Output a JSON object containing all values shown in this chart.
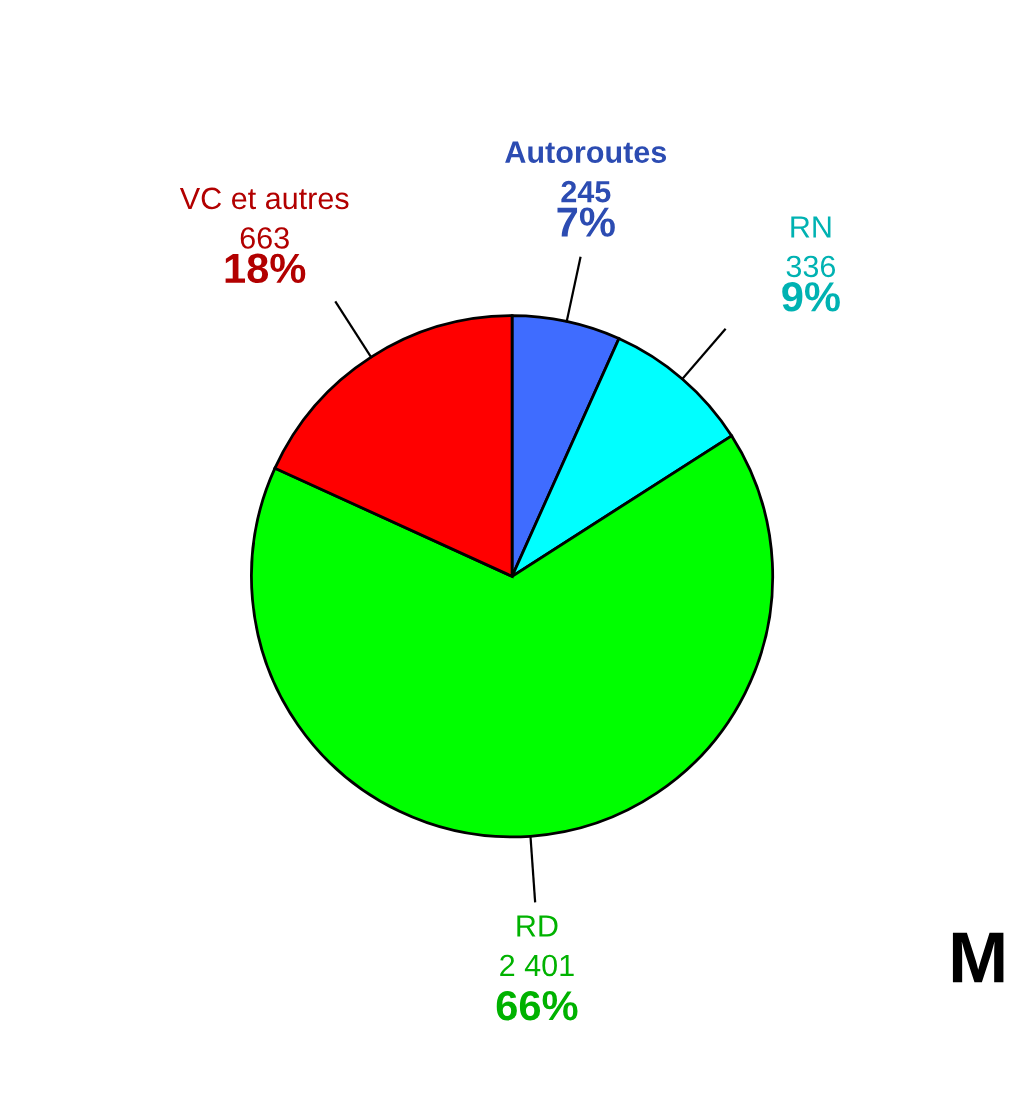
{
  "chart_data": {
    "type": "pie",
    "categories": [
      "Autoroutes",
      "RN",
      "RD",
      "VC et autres"
    ],
    "values": [
      245,
      336,
      2401,
      663
    ],
    "colors": [
      "#3f6cff",
      "#00ffff",
      "#00ff00",
      "#ff0000"
    ],
    "value_labels": [
      "245\n7%",
      "336\n9%",
      "2 401\n66%",
      "663\n18%"
    ],
    "annotations": [
      "M"
    ]
  }
}
